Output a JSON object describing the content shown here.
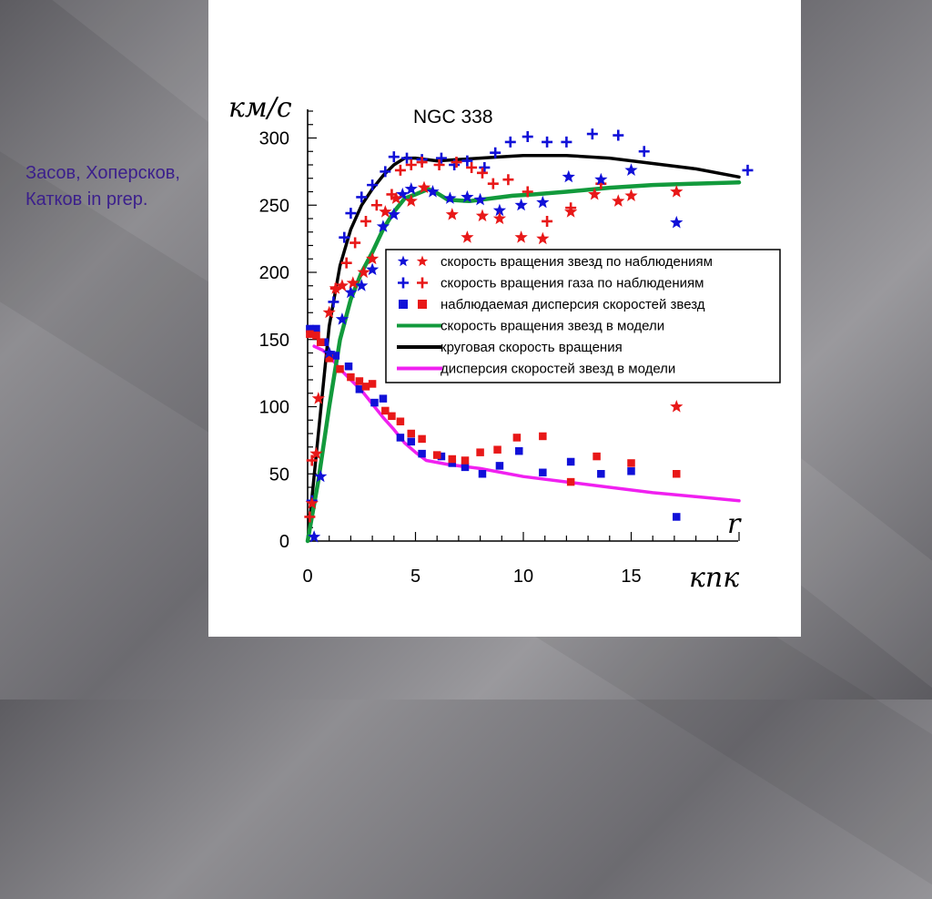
{
  "slide": {
    "credit_lines": [
      "Засов, Хоперсков,",
      "Катков in prep."
    ]
  },
  "colors": {
    "blue": "#1010d8",
    "red": "#e81818",
    "green": "#129a3c",
    "black": "#000000",
    "magenta": "#f020f0"
  },
  "chart_data": {
    "type": "scatter",
    "title": "NGC 338",
    "ylabel": "км/с",
    "xlabel": "кпк",
    "x_symbol": "r",
    "xlim": [
      0,
      20
    ],
    "ylim": [
      0,
      320
    ],
    "x_ticks": [
      0,
      5,
      10,
      15
    ],
    "y_ticks": [
      0,
      50,
      100,
      150,
      200,
      250,
      300
    ],
    "grid": false,
    "legend_position": "right-middle",
    "legend": [
      {
        "key": "stars",
        "label": "скорость вращения звезд по наблюдениям"
      },
      {
        "key": "gas",
        "label": "скорость вращения газа по наблюдениям"
      },
      {
        "key": "disp",
        "label": "наблюдаемая дисперсия скоростей  звезд"
      },
      {
        "key": "model_stars",
        "label": "скорость вращения звезд в модели"
      },
      {
        "key": "circular",
        "label": "круговая скорость вращения"
      },
      {
        "key": "model_disp",
        "label": "дисперсия скоростей звезд в модели"
      }
    ],
    "observed": {
      "stars_blue": [
        [
          0.3,
          3
        ],
        [
          0.6,
          48
        ],
        [
          1.0,
          140
        ],
        [
          1.6,
          165
        ],
        [
          2.0,
          185
        ],
        [
          2.5,
          190
        ],
        [
          3.0,
          202
        ],
        [
          3.5,
          234
        ],
        [
          4.0,
          243
        ],
        [
          4.4,
          258
        ],
        [
          4.8,
          262
        ],
        [
          5.8,
          260
        ],
        [
          6.6,
          255
        ],
        [
          7.4,
          256
        ],
        [
          8.0,
          254
        ],
        [
          8.9,
          246
        ],
        [
          9.9,
          250
        ],
        [
          10.9,
          252
        ],
        [
          12.1,
          271
        ],
        [
          13.6,
          269
        ],
        [
          15.0,
          276
        ],
        [
          17.1,
          237
        ]
      ],
      "stars_red": [
        [
          0.2,
          28
        ],
        [
          0.4,
          65
        ],
        [
          0.5,
          106
        ],
        [
          1.0,
          170
        ],
        [
          1.3,
          188
        ],
        [
          1.6,
          190
        ],
        [
          2.1,
          192
        ],
        [
          2.6,
          200
        ],
        [
          3.0,
          210
        ],
        [
          3.6,
          245
        ],
        [
          4.1,
          255
        ],
        [
          4.8,
          253
        ],
        [
          5.4,
          263
        ],
        [
          6.7,
          243
        ],
        [
          7.4,
          226
        ],
        [
          8.1,
          242
        ],
        [
          8.9,
          240
        ],
        [
          9.9,
          226
        ],
        [
          10.9,
          225
        ],
        [
          12.2,
          245
        ],
        [
          13.3,
          258
        ],
        [
          14.4,
          253
        ],
        [
          15.0,
          257
        ],
        [
          17.1,
          260
        ],
        [
          17.1,
          100
        ]
      ],
      "gas_blue": [
        [
          0.2,
          30
        ],
        [
          1.2,
          178
        ],
        [
          1.7,
          226
        ],
        [
          2.0,
          244
        ],
        [
          2.5,
          256
        ],
        [
          3.0,
          265
        ],
        [
          3.6,
          275
        ],
        [
          4.0,
          286
        ],
        [
          4.6,
          285
        ],
        [
          5.3,
          284
        ],
        [
          6.2,
          285
        ],
        [
          6.8,
          280
        ],
        [
          7.4,
          283
        ],
        [
          8.2,
          278
        ],
        [
          8.7,
          289
        ],
        [
          9.4,
          297
        ],
        [
          10.2,
          301
        ],
        [
          11.1,
          297
        ],
        [
          12.0,
          297
        ],
        [
          13.2,
          303
        ],
        [
          14.4,
          302
        ],
        [
          15.6,
          290
        ],
        [
          20.4,
          276
        ]
      ],
      "gas_red": [
        [
          0.1,
          18
        ],
        [
          0.2,
          60
        ],
        [
          1.3,
          188
        ],
        [
          1.8,
          207
        ],
        [
          2.2,
          222
        ],
        [
          2.7,
          238
        ],
        [
          3.2,
          250
        ],
        [
          3.9,
          258
        ],
        [
          4.3,
          276
        ],
        [
          4.8,
          280
        ],
        [
          5.3,
          282
        ],
        [
          6.1,
          280
        ],
        [
          6.9,
          282
        ],
        [
          7.6,
          278
        ],
        [
          8.1,
          274
        ],
        [
          8.6,
          266
        ],
        [
          9.3,
          269
        ],
        [
          10.2,
          260
        ],
        [
          11.1,
          238
        ],
        [
          12.2,
          248
        ],
        [
          13.6,
          266
        ]
      ],
      "disp_blue": [
        [
          0.1,
          158
        ],
        [
          0.4,
          158
        ],
        [
          0.8,
          148
        ],
        [
          1.3,
          138
        ],
        [
          1.9,
          130
        ],
        [
          2.4,
          113
        ],
        [
          3.1,
          103
        ],
        [
          3.5,
          106
        ],
        [
          4.3,
          77
        ],
        [
          4.8,
          74
        ],
        [
          5.3,
          65
        ],
        [
          6.2,
          63
        ],
        [
          6.7,
          58
        ],
        [
          7.3,
          55
        ],
        [
          8.1,
          50
        ],
        [
          8.9,
          56
        ],
        [
          9.8,
          67
        ],
        [
          10.9,
          51
        ],
        [
          12.2,
          59
        ],
        [
          13.6,
          50
        ],
        [
          15.0,
          52
        ],
        [
          17.1,
          18
        ]
      ],
      "disp_red": [
        [
          0.1,
          154
        ],
        [
          0.4,
          153
        ],
        [
          0.6,
          148
        ],
        [
          1.0,
          136
        ],
        [
          1.5,
          128
        ],
        [
          2.0,
          122
        ],
        [
          2.4,
          119
        ],
        [
          2.7,
          115
        ],
        [
          3.0,
          117
        ],
        [
          3.6,
          97
        ],
        [
          3.9,
          93
        ],
        [
          4.3,
          89
        ],
        [
          4.8,
          80
        ],
        [
          5.3,
          76
        ],
        [
          6.0,
          64
        ],
        [
          6.7,
          61
        ],
        [
          7.3,
          60
        ],
        [
          8.0,
          66
        ],
        [
          8.8,
          68
        ],
        [
          9.7,
          77
        ],
        [
          10.9,
          78
        ],
        [
          12.2,
          44
        ],
        [
          13.4,
          63
        ],
        [
          15.0,
          58
        ],
        [
          17.1,
          50
        ]
      ]
    },
    "model": {
      "circular": [
        [
          0,
          0
        ],
        [
          0.5,
          80
        ],
        [
          1.0,
          160
        ],
        [
          1.5,
          205
        ],
        [
          2.0,
          232
        ],
        [
          2.5,
          250
        ],
        [
          3.0,
          262
        ],
        [
          3.5,
          272
        ],
        [
          4.0,
          280
        ],
        [
          4.5,
          285
        ],
        [
          5.0,
          285
        ],
        [
          6.0,
          283
        ],
        [
          7.0,
          284
        ],
        [
          8.0,
          285
        ],
        [
          9.0,
          286
        ],
        [
          10.0,
          287
        ],
        [
          11.0,
          287
        ],
        [
          12.0,
          287
        ],
        [
          14.0,
          285
        ],
        [
          16.0,
          281
        ],
        [
          18.0,
          277
        ],
        [
          20.0,
          271
        ]
      ],
      "stars": [
        [
          0,
          0
        ],
        [
          0.5,
          45
        ],
        [
          1.0,
          100
        ],
        [
          1.5,
          150
        ],
        [
          2.0,
          180
        ],
        [
          2.5,
          200
        ],
        [
          3.0,
          215
        ],
        [
          3.5,
          232
        ],
        [
          4.0,
          245
        ],
        [
          4.5,
          255
        ],
        [
          5.0,
          258
        ],
        [
          5.6,
          262
        ],
        [
          6.0,
          259
        ],
        [
          6.5,
          254
        ],
        [
          7.5,
          253
        ],
        [
          8.5,
          255
        ],
        [
          9.5,
          257
        ],
        [
          10.5,
          258
        ],
        [
          12.0,
          260
        ],
        [
          14.0,
          263
        ],
        [
          16.0,
          265
        ],
        [
          18.0,
          266
        ],
        [
          20.0,
          267
        ]
      ],
      "dispersion": [
        [
          0.3,
          145
        ],
        [
          0.7,
          142
        ],
        [
          1.0,
          138
        ],
        [
          1.5,
          128
        ],
        [
          2.0,
          120
        ],
        [
          2.5,
          112
        ],
        [
          3.0,
          102
        ],
        [
          3.5,
          92
        ],
        [
          4.0,
          83
        ],
        [
          4.5,
          73
        ],
        [
          5.0,
          66
        ],
        [
          5.5,
          60
        ],
        [
          6.5,
          57
        ],
        [
          8.0,
          54
        ],
        [
          10.0,
          48
        ],
        [
          12.0,
          44
        ],
        [
          14.0,
          40
        ],
        [
          16.0,
          36
        ],
        [
          18.0,
          33
        ],
        [
          20.0,
          30
        ]
      ]
    }
  }
}
